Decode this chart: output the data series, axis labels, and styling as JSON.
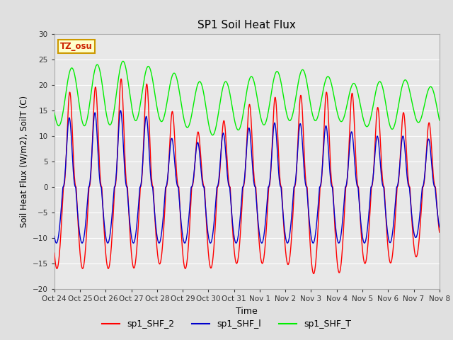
{
  "title": "SP1 Soil Heat Flux",
  "xlabel": "Time",
  "ylabel": "Soil Heat Flux (W/m2), SoilT (C)",
  "ylim": [
    -20,
    30
  ],
  "fig_bg": "#e0e0e0",
  "plot_bg": "#e8e8e8",
  "grid_color": "#ffffff",
  "tz_label": "TZ_osu",
  "tz_fg": "#cc2200",
  "tz_bg": "#ffffcc",
  "tz_border": "#cc9900",
  "line_colors": {
    "shf2": "#ff0000",
    "shf1": "#0000cc",
    "shft": "#00ee00"
  },
  "legend_labels": [
    "sp1_SHF_2",
    "sp1_SHF_l",
    "sp1_SHF_T"
  ],
  "tick_labels": [
    "Oct 24",
    "Oct 25",
    "Oct 26",
    "Oct 27",
    "Oct 28",
    "Oct 29",
    "Oct 30",
    "Oct 31",
    "Nov 1",
    "Nov 2",
    "Nov 3",
    "Nov 4",
    "Nov 5",
    "Nov 6",
    "Nov 7",
    "Nov 8"
  ],
  "n_days": 15,
  "points_per_day": 144
}
